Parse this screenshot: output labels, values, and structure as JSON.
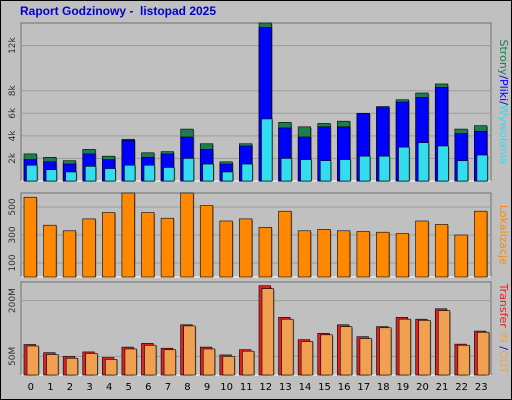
{
  "title": "Raport Godzinowy -  listopad 2025",
  "colors": {
    "background": "#c0c0c0",
    "plot_bg": "#c0c0c0",
    "grid": "#9c9c9c",
    "title": "#0000cc",
    "hits": "#1e7d4f",
    "files": "#0000ff",
    "pages": "#33ddee",
    "visits": "#ff8800",
    "transfer_in": "#dd2222",
    "transfer_out": "#f0a050",
    "sep": "#808080"
  },
  "chart_data": [
    {
      "type": "bar",
      "name": "top",
      "categories": [
        "0",
        "1",
        "2",
        "3",
        "4",
        "5",
        "6",
        "7",
        "8",
        "9",
        "10",
        "11",
        "12",
        "13",
        "14",
        "15",
        "16",
        "17",
        "18",
        "19",
        "20",
        "21",
        "22",
        "23"
      ],
      "ylim": [
        0,
        14000
      ],
      "yticks": [
        {
          "v": 2000,
          "label": "2k"
        },
        {
          "v": 4000,
          "label": "4k"
        },
        {
          "v": 6000,
          "label": "6k"
        },
        {
          "v": 8000,
          "label": "8k"
        },
        {
          "v": 12000,
          "label": "12k"
        }
      ],
      "grid": true,
      "series": [
        {
          "name": "Strony",
          "key": "hits",
          "values": [
            2400,
            2100,
            1800,
            2800,
            2200,
            3700,
            2500,
            2600,
            4600,
            3300,
            1700,
            3300,
            14500,
            5200,
            4800,
            5100,
            5300,
            6000,
            6600,
            7200,
            7800,
            8600,
            4600,
            4900
          ]
        },
        {
          "name": "Pliki",
          "key": "files",
          "values": [
            1900,
            1700,
            1500,
            2400,
            1900,
            3600,
            2100,
            2400,
            3900,
            2800,
            1500,
            3100,
            13600,
            4700,
            3900,
            4800,
            4800,
            6000,
            6500,
            7000,
            7400,
            8300,
            4200,
            4400
          ]
        },
        {
          "name": "Wywołania",
          "key": "pages",
          "values": [
            1400,
            1000,
            800,
            1300,
            1100,
            1400,
            1400,
            1200,
            2000,
            1500,
            800,
            1500,
            5500,
            2000,
            1900,
            1800,
            1900,
            2200,
            2200,
            3000,
            3400,
            3100,
            1800,
            2300
          ]
        }
      ],
      "ylabel_parts": [
        {
          "text": "Strony",
          "key": "hits"
        },
        {
          "text": "/",
          "key": "title"
        },
        {
          "text": "Pliki",
          "key": "files"
        },
        {
          "text": "/",
          "key": "title"
        },
        {
          "text": "Wywołania",
          "key": "pages"
        }
      ]
    },
    {
      "type": "bar",
      "name": "middle",
      "categories": [
        "0",
        "1",
        "2",
        "3",
        "4",
        "5",
        "6",
        "7",
        "8",
        "9",
        "10",
        "11",
        "12",
        "13",
        "14",
        "15",
        "16",
        "17",
        "18",
        "19",
        "20",
        "21",
        "22",
        "23"
      ],
      "ylim": [
        0,
        600
      ],
      "yticks": [
        {
          "v": 100,
          "label": "100"
        },
        {
          "v": 300,
          "label": "300"
        },
        {
          "v": 500,
          "label": "500"
        }
      ],
      "grid": true,
      "series": [
        {
          "name": "Lokalizacje",
          "key": "visits",
          "values": [
            570,
            370,
            330,
            415,
            460,
            680,
            460,
            420,
            680,
            510,
            400,
            415,
            355,
            470,
            330,
            340,
            330,
            325,
            320,
            310,
            400,
            375,
            300,
            470
          ]
        }
      ],
      "ylabel_parts": [
        {
          "text": "Lokalizacje",
          "key": "visits"
        }
      ]
    },
    {
      "type": "bar",
      "name": "bottom",
      "categories": [
        "0",
        "1",
        "2",
        "3",
        "4",
        "5",
        "6",
        "7",
        "8",
        "9",
        "10",
        "11",
        "12",
        "13",
        "14",
        "15",
        "16",
        "17",
        "18",
        "19",
        "20",
        "21",
        "22",
        "23"
      ],
      "ylim": [
        0,
        250
      ],
      "yticks": [
        {
          "v": 50,
          "label": "50M"
        },
        {
          "v": 200,
          "label": "200M"
        }
      ],
      "grid": true,
      "series": [
        {
          "name": "Transfer IN",
          "key": "transfer_in",
          "values": [
            82,
            60,
            50,
            62,
            47,
            75,
            85,
            72,
            135,
            75,
            54,
            68,
            240,
            155,
            95,
            112,
            135,
            103,
            130,
            155,
            150,
            178,
            83,
            118
          ]
        },
        {
          "name": "Transfer OUT",
          "key": "transfer_out",
          "values": [
            78,
            55,
            45,
            58,
            42,
            70,
            80,
            68,
            132,
            70,
            50,
            64,
            232,
            150,
            90,
            108,
            130,
            98,
            127,
            150,
            147,
            173,
            80,
            115
          ]
        }
      ],
      "ylabel_parts": [
        {
          "text": "Transfer",
          "key": "transfer_in"
        },
        {
          "text": " IN",
          "key": "transfer_out"
        },
        {
          "text": " /",
          "key": "title"
        },
        {
          "text": "OUT",
          "key": "transfer_out"
        }
      ]
    }
  ]
}
